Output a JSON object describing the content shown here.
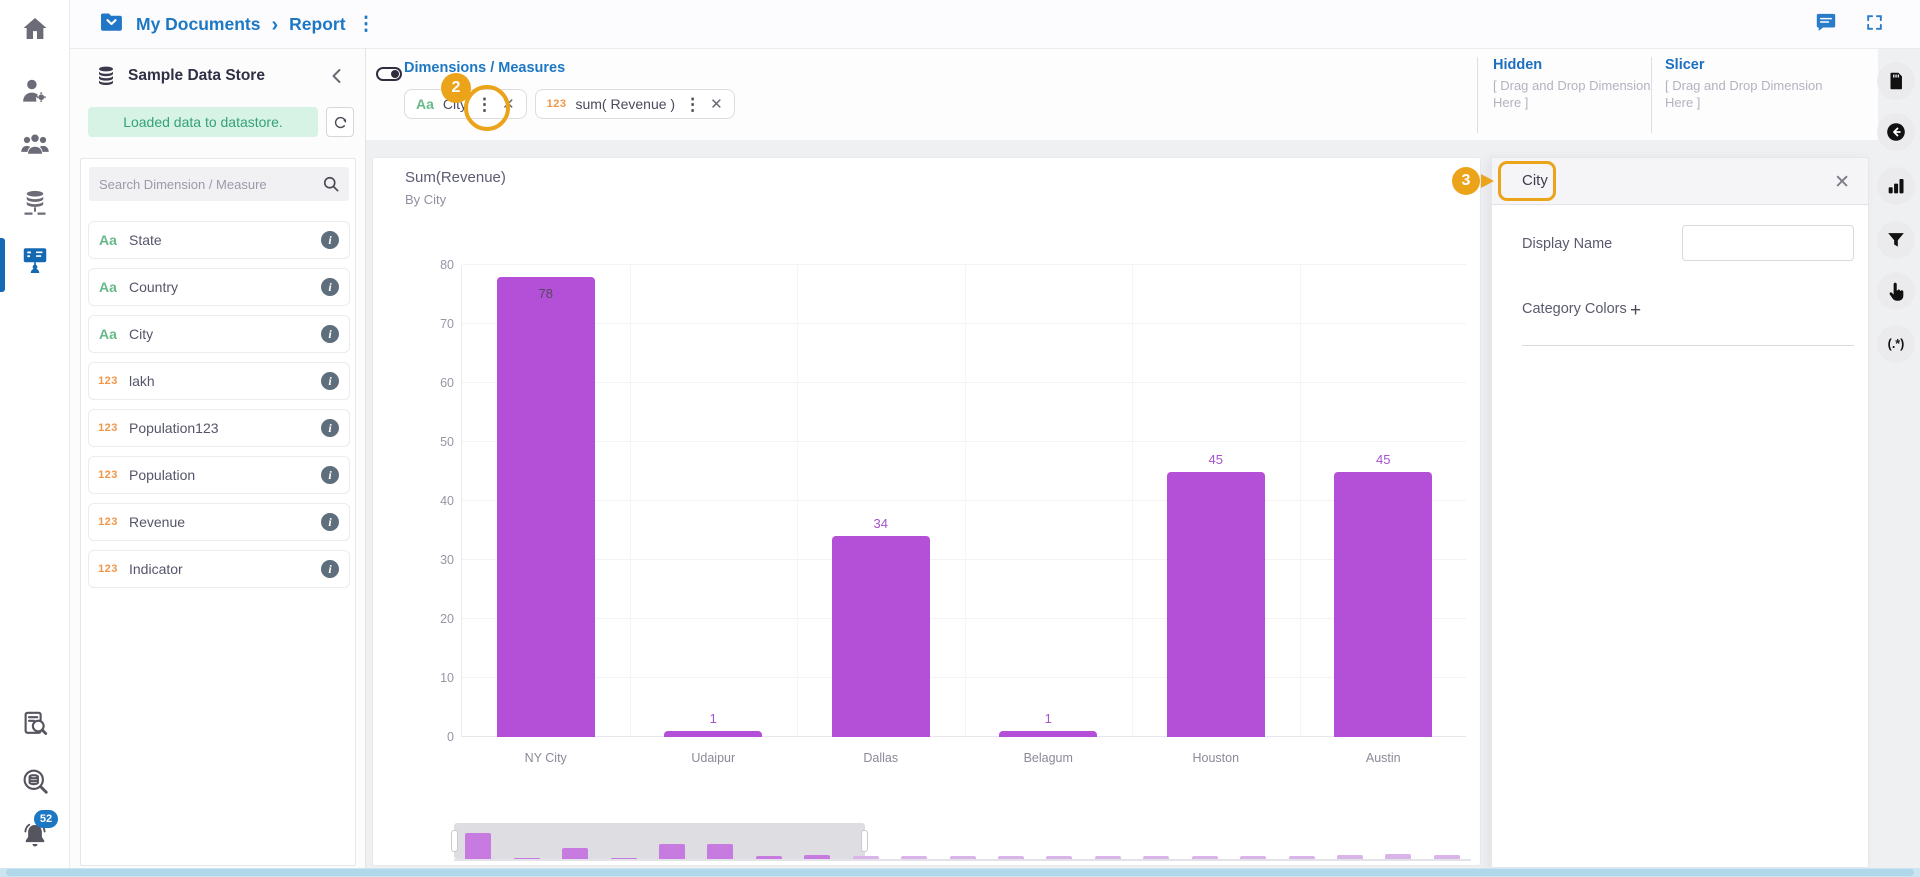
{
  "topbar": {
    "breadcrumb": {
      "items": [
        "My Documents",
        "Report"
      ]
    }
  },
  "left_rail": {
    "top_items": [
      {
        "icon": "home"
      },
      {
        "icon": "user-settings"
      },
      {
        "icon": "user-groups"
      },
      {
        "icon": "datastore"
      },
      {
        "icon": "report",
        "active": true
      }
    ],
    "bottom_items": [
      {
        "icon": "audit-search"
      },
      {
        "icon": "datastore-search"
      },
      {
        "icon": "notifications",
        "badge": "52"
      }
    ]
  },
  "datastore_panel": {
    "title": "Sample Data Store",
    "status_message": "Loaded data to datastore.",
    "search_placeholder": "Search Dimension / Measure",
    "fields": [
      {
        "type": "dimension",
        "prefix": "Aa",
        "label": "State"
      },
      {
        "type": "dimension",
        "prefix": "Aa",
        "label": "Country"
      },
      {
        "type": "dimension",
        "prefix": "Aa",
        "label": "City"
      },
      {
        "type": "measure",
        "prefix": "123",
        "label": "lakh"
      },
      {
        "type": "measure",
        "prefix": "123",
        "label": "Population123"
      },
      {
        "type": "measure",
        "prefix": "123",
        "label": "Population"
      },
      {
        "type": "measure",
        "prefix": "123",
        "label": "Revenue"
      },
      {
        "type": "measure",
        "prefix": "123",
        "label": "Indicator"
      }
    ]
  },
  "toolbar": {
    "section_title": "Dimensions / Measures",
    "chips": [
      {
        "type": "dimension",
        "prefix": "Aa",
        "label": "City"
      },
      {
        "type": "measure",
        "prefix": "123",
        "label": "sum( Revenue )"
      }
    ],
    "hidden": {
      "title": "Hidden",
      "hint": "[ Drag and Drop Dimension Here ]"
    },
    "slicer": {
      "title": "Slicer",
      "hint": "[ Drag and Drop Dimension Here ]"
    }
  },
  "chart_data": {
    "type": "bar",
    "title": "Sum(Revenue)",
    "subtitle": "By City",
    "categories": [
      "NY City",
      "Udaipur",
      "Dallas",
      "Belagum",
      "Houston",
      "Austin"
    ],
    "values": [
      78,
      1,
      34,
      1,
      45,
      45
    ],
    "xlabel": "",
    "ylabel": "",
    "ylim": [
      0,
      80
    ],
    "ytick_step": 10,
    "grid": true,
    "legend": false,
    "bar_color": "#b44fd8",
    "label_color": "#a653cf",
    "navigator": {
      "window": [
        0,
        0.404
      ],
      "values": [
        78,
        1,
        34,
        1,
        45,
        45,
        10,
        12,
        8,
        10,
        8,
        8,
        10,
        8,
        8,
        10,
        10,
        8,
        12,
        15,
        12
      ]
    }
  },
  "properties_panel": {
    "title": "City",
    "display_name_label": "Display Name",
    "display_name_value": "",
    "category_colors_label": "Category Colors",
    "add_button_label": "+"
  },
  "right_rail": {
    "items": [
      {
        "icon": "save"
      },
      {
        "icon": "back"
      },
      {
        "icon": "chart"
      },
      {
        "icon": "filter"
      },
      {
        "icon": "pointer"
      },
      {
        "icon": "regex",
        "glyph": "(.*)"
      }
    ]
  },
  "annotations": {
    "step_2": "2",
    "step_3": "3"
  },
  "colors": {
    "accent_blue": "#1d78c4",
    "bar_purple": "#b44fd8",
    "annotation_orange": "#eba31a",
    "status_green_bg": "#d7f3e6",
    "status_green_text": "#35a178",
    "dimension_green": "#67b98a",
    "measure_orange": "#f0964a"
  }
}
